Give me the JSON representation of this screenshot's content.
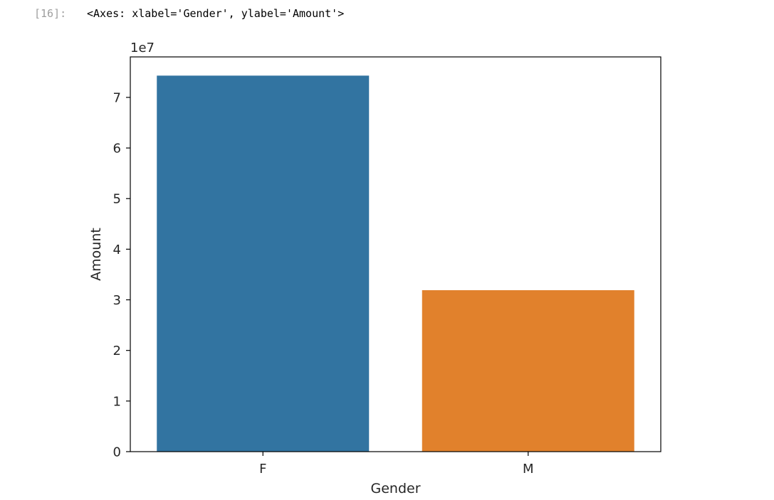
{
  "cell": {
    "prompt": "[16]:",
    "repr": "<Axes: xlabel='Gender', ylabel='Amount'>"
  },
  "chart_data": {
    "type": "bar",
    "categories": [
      "F",
      "M"
    ],
    "values": [
      74300000,
      31900000
    ],
    "colors": [
      "#3274a1",
      "#e1812c"
    ],
    "xlabel": "Gender",
    "ylabel": "Amount",
    "offset_label": "1e7",
    "yticks": [
      0,
      10000000,
      20000000,
      30000000,
      40000000,
      50000000,
      60000000,
      70000000
    ],
    "ytick_labels": [
      "0",
      "1",
      "2",
      "3",
      "4",
      "5",
      "6",
      "7"
    ],
    "ylim": [
      0,
      78000000
    ],
    "grid": false,
    "legend": false
  }
}
